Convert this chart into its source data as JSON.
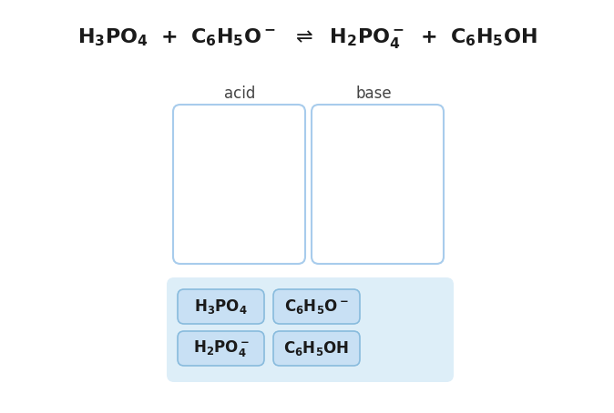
{
  "background_color": "#ffffff",
  "box_border_color": "#a8ccec",
  "box_fill_color": "#ffffff",
  "palette_bg_color": "#ddeef8",
  "tag_bg_color": "#c8e0f4",
  "tag_border_color": "#88bbdd",
  "text_color": "#1a1a1a",
  "label_color": "#444444",
  "eq_fontsize": 16,
  "label_fontsize": 12,
  "tag_fontsize": 12
}
